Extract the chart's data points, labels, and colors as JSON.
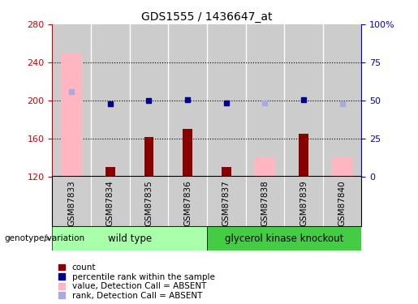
{
  "title": "GDS1555 / 1436647_at",
  "samples": [
    "GSM87833",
    "GSM87834",
    "GSM87835",
    "GSM87836",
    "GSM87837",
    "GSM87838",
    "GSM87839",
    "GSM87840"
  ],
  "ylim_left": [
    120,
    280
  ],
  "ylim_right": [
    0,
    100
  ],
  "yticks_left": [
    120,
    160,
    200,
    240,
    280
  ],
  "yticks_right": [
    0,
    25,
    50,
    75,
    100
  ],
  "yticklabels_right": [
    "0",
    "25",
    "50",
    "75",
    "100%"
  ],
  "bar_values": {
    "count_dark": [
      null,
      130,
      161,
      170,
      130,
      null,
      165,
      null
    ],
    "count_light": [
      250,
      null,
      null,
      null,
      null,
      140,
      null,
      140
    ],
    "rank_dark": [
      null,
      196,
      200,
      201,
      197,
      null,
      201,
      null
    ],
    "rank_light": [
      209,
      null,
      null,
      null,
      null,
      197,
      null,
      196
    ]
  },
  "colors": {
    "dark_red": "#880000",
    "light_pink": "#FFB6C1",
    "dark_blue": "#000088",
    "light_blue": "#AAAADD",
    "group_wt_color": "#AAFFAA",
    "group_ko_color": "#44CC44",
    "axis_left_color": "#CC0000",
    "axis_right_color": "#0000CC",
    "sample_bg": "#CCCCCC",
    "white": "#FFFFFF"
  },
  "legend_items": [
    {
      "label": "count",
      "color": "#880000"
    },
    {
      "label": "percentile rank within the sample",
      "color": "#000088"
    },
    {
      "label": "value, Detection Call = ABSENT",
      "color": "#FFB6C1"
    },
    {
      "label": "rank, Detection Call = ABSENT",
      "color": "#AAAADD"
    }
  ],
  "wt_range": [
    0,
    3
  ],
  "ko_range": [
    4,
    7
  ],
  "group_label": "genotype/variation",
  "wt_label": "wild type",
  "ko_label": "glycerol kinase knockout"
}
